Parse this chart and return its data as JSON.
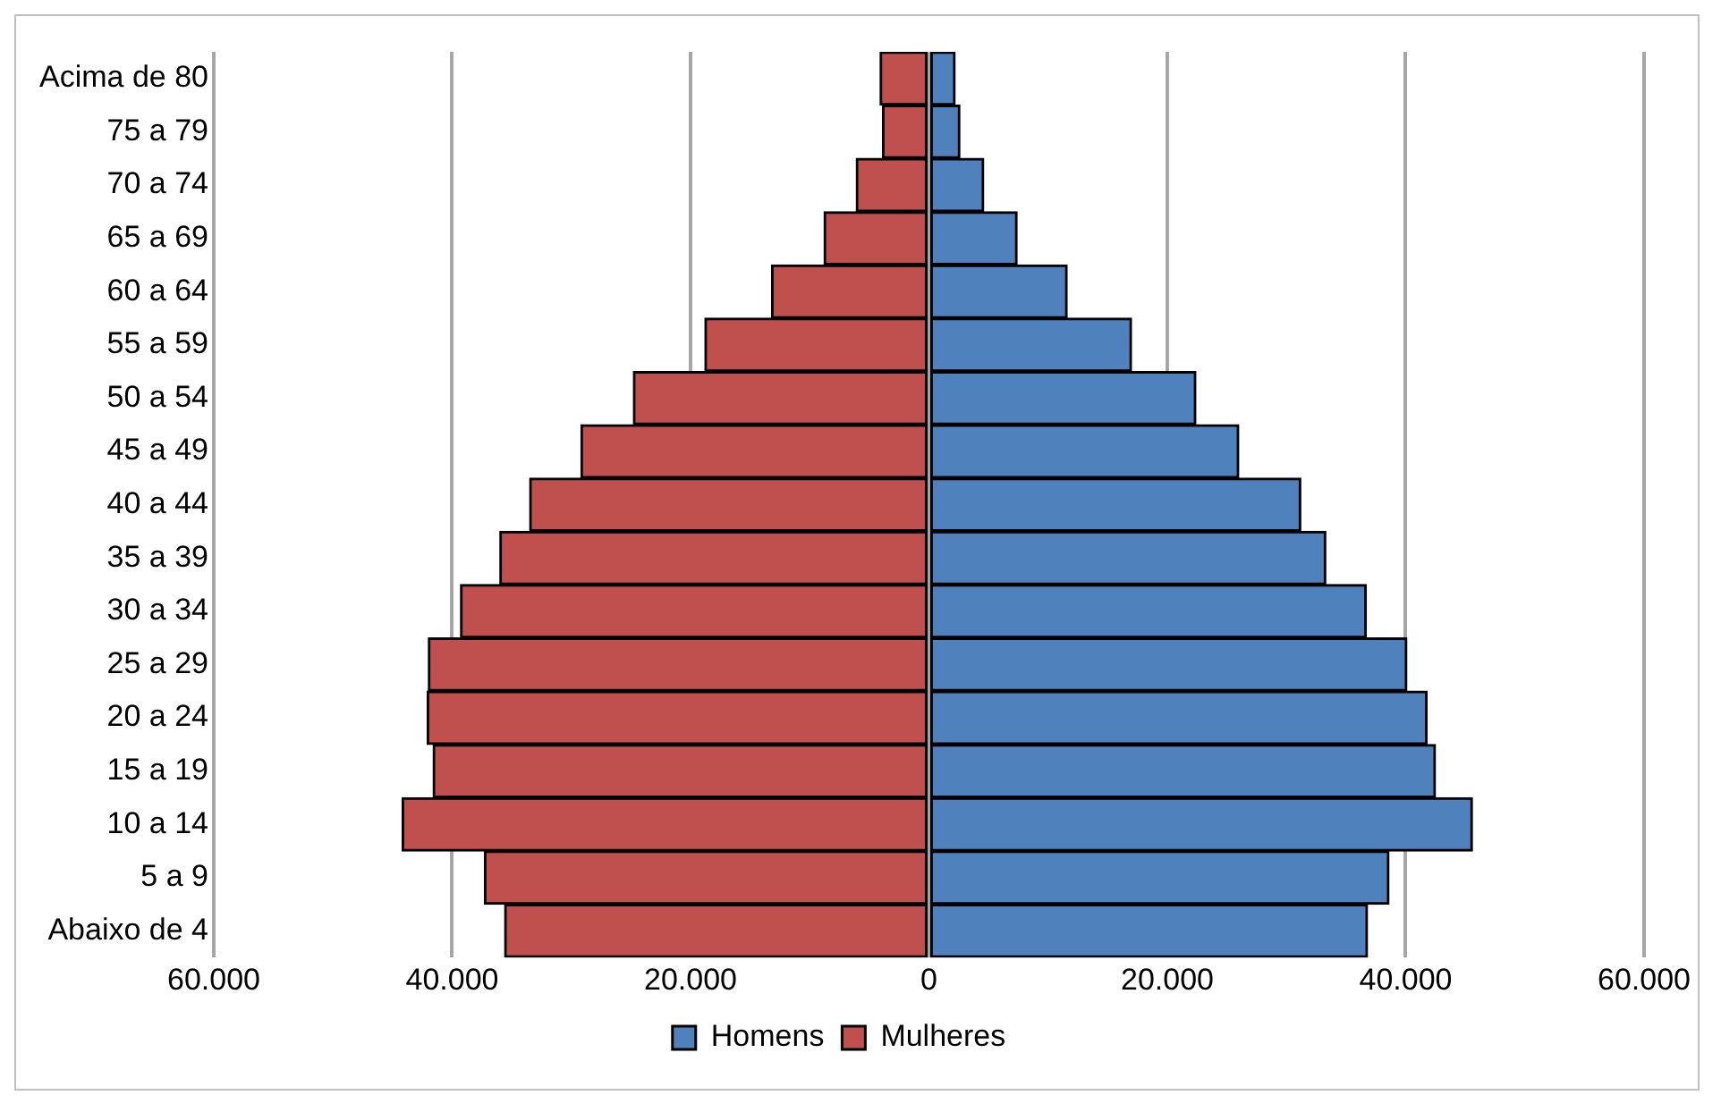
{
  "chart_data": {
    "type": "bar",
    "orientation": "horizontal",
    "stacked": true,
    "categories": [
      "Acima de 80",
      "75 a 79",
      "70 a 74",
      "65 a 69",
      "60 a 64",
      "55 a 59",
      "50 a 54",
      "45 a 49",
      "40 a 44",
      "35 a 39",
      "30 a 34",
      "25 a 29",
      "20 a 24",
      "15 a 19",
      "10 a 14",
      "5 a 9",
      "Abaixo de 4"
    ],
    "series": [
      {
        "name": "Homens",
        "color": "#4f81bd",
        "values": [
          2200,
          2600,
          4600,
          7400,
          11600,
          17000,
          22400,
          26000,
          31200,
          33300,
          36700,
          40100,
          41800,
          42500,
          45600,
          38600,
          36800
        ]
      },
      {
        "name": "Mulheres",
        "color": "#c0504d",
        "values": [
          -4100,
          -3900,
          -6100,
          -8800,
          -13200,
          -18800,
          -24800,
          -29200,
          -33500,
          -36000,
          -39300,
          -42000,
          -42100,
          -41600,
          -44200,
          -37300,
          -35600
        ]
      }
    ],
    "xlim": [
      -60000,
      60000
    ],
    "xticks": [
      {
        "value": -60000,
        "label": "60.000"
      },
      {
        "value": -40000,
        "label": "40.000"
      },
      {
        "value": -20000,
        "label": "20.000"
      },
      0,
      {
        "value": 20000,
        "label": "20.000"
      },
      {
        "value": 40000,
        "label": "40.000"
      },
      {
        "value": 60000,
        "label": "60.000"
      }
    ],
    "grid": "x",
    "legend": "bottom"
  }
}
